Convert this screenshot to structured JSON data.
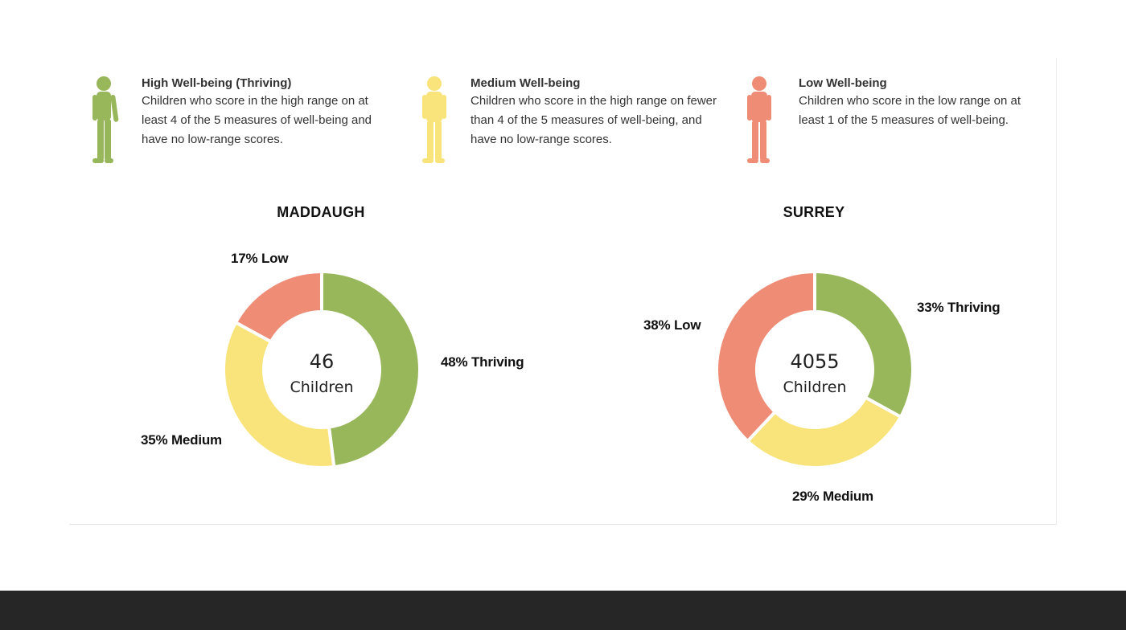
{
  "colors": {
    "thriving": "#98b65a",
    "medium": "#f8e47a",
    "low": "#ef8c76",
    "footer": "#262626"
  },
  "legend": [
    {
      "key": "high",
      "icon": "child-silhouette-icon",
      "title": "High Well-being (Thriving)",
      "description": "Children who score in the high range on at least 4 of the 5 measures of well-being and have no low-range scores."
    },
    {
      "key": "medium",
      "icon": "child-silhouette-icon",
      "title": "Medium Well-being",
      "description": "Children who score in the high range on fewer than 4 of the 5 measures of well-being, and have no low-range scores."
    },
    {
      "key": "low",
      "icon": "child-silhouette-icon",
      "title": "Low Well-being",
      "description": "Children who score in the low range on at least 1 of the 5 measures of well-being."
    }
  ],
  "chart_data": [
    {
      "type": "pie",
      "donut": true,
      "title": "MADDAUGH",
      "center_count": "46",
      "center_label": "Children",
      "categories": [
        "Thriving",
        "Medium",
        "Low"
      ],
      "values": [
        48,
        35,
        17
      ],
      "labels": [
        "48% Thriving",
        "35% Medium",
        "17% Low"
      ],
      "colors": [
        "#98b65a",
        "#f8e47a",
        "#ef8c76"
      ]
    },
    {
      "type": "pie",
      "donut": true,
      "title": "SURREY",
      "center_count": "4055",
      "center_label": "Children",
      "categories": [
        "Thriving",
        "Medium",
        "Low"
      ],
      "values": [
        33,
        29,
        38
      ],
      "labels": [
        "33% Thriving",
        "29% Medium",
        "38% Low"
      ],
      "colors": [
        "#98b65a",
        "#f8e47a",
        "#ef8c76"
      ]
    }
  ]
}
